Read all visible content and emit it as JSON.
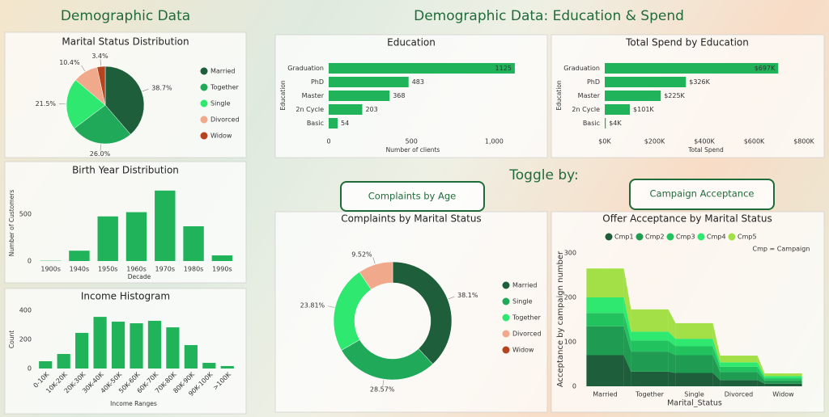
{
  "header": {
    "left_title": "Demographic Data",
    "right_title": "Demographic Data: Education & Spend",
    "toggle_label": "Toggle by:",
    "buttons": [
      "Complaints by Age",
      "Campaign Acceptance"
    ]
  },
  "chart_data": [
    {
      "type": "pie",
      "title": "Marital Status Distribution",
      "categories": [
        "Married",
        "Together",
        "Single",
        "Divorced",
        "Widow"
      ],
      "values": [
        38.7,
        26.0,
        21.5,
        10.4,
        3.4
      ],
      "value_labels": [
        "38.7%",
        "26.0%",
        "21.5%",
        "10.4%",
        "3.4%"
      ],
      "colors": [
        "#1e5e3b",
        "#21a95a",
        "#2ee86f",
        "#f0a98a",
        "#b5441e"
      ]
    },
    {
      "type": "bar",
      "title": "Birth Year Distribution",
      "categories": [
        "1900s",
        "1940s",
        "1950s",
        "1960s",
        "1970s",
        "1980s",
        "1990s"
      ],
      "values": [
        3,
        110,
        475,
        520,
        750,
        370,
        60
      ],
      "color": "#21b35a",
      "ylim": [
        0,
        800
      ],
      "yticks": [
        0,
        500
      ],
      "xlabel": "Decade",
      "ylabel": "Number of Customers"
    },
    {
      "type": "bar",
      "title": "Income Histogram",
      "categories": [
        "0-10K",
        "10K-20K",
        "20K-30K",
        "30K-40K",
        "40K-50K",
        "50K-60K",
        "60K-70K",
        "70K-80K",
        "80K-90K",
        "90K-100K",
        ">100K"
      ],
      "values": [
        50,
        100,
        245,
        355,
        322,
        311,
        328,
        283,
        161,
        39,
        17
      ],
      "color": "#21b35a",
      "ylim": [
        0,
        450
      ],
      "yticks": [
        0,
        200,
        400
      ],
      "xlabel": "Income Ranges",
      "ylabel": "Count"
    },
    {
      "type": "barh",
      "title": "Education",
      "categories": [
        "Graduation",
        "PhD",
        "Master",
        "2n Cycle",
        "Basic"
      ],
      "values": [
        1125,
        483,
        368,
        203,
        54
      ],
      "color": "#21b35a",
      "xlim": [
        0,
        1150
      ],
      "xticks": [
        0,
        500,
        {
          "value": 1000,
          "label": "1,000"
        }
      ],
      "xlabel": "Number of clients",
      "ylabel": "Education"
    },
    {
      "type": "barh",
      "title": "Total Spend by Education",
      "categories": [
        "Graduation",
        "PhD",
        "Master",
        "2n Cycle",
        "Basic"
      ],
      "values": [
        697000,
        326000,
        225000,
        101000,
        4000
      ],
      "value_labels": [
        "$697K",
        "$326K",
        "$225K",
        "$101K",
        "$4K"
      ],
      "color": "#21b35a",
      "xlim": [
        0,
        800000
      ],
      "xticks": [
        {
          "value": 0,
          "label": "$0K"
        },
        {
          "value": 200000,
          "label": "$200K"
        },
        {
          "value": 400000,
          "label": "$400K"
        },
        {
          "value": 600000,
          "label": "$600K"
        },
        {
          "value": 800000,
          "label": "$800K"
        }
      ],
      "xlabel": "Total Spend",
      "ylabel": "Education"
    },
    {
      "type": "donut",
      "title": "Complaints by Marital Status",
      "categories": [
        "Married",
        "Single",
        "Together",
        "Divorced",
        "Widow"
      ],
      "values": [
        38.1,
        28.57,
        23.81,
        9.52,
        0
      ],
      "value_labels": [
        "38.1%",
        "28.57%",
        "23.81%",
        "9.52%",
        null
      ],
      "colors": [
        "#1e5e3b",
        "#21a95a",
        "#2ee86f",
        "#f0a98a",
        "#b5441e"
      ]
    },
    {
      "type": "area",
      "title": "Offer Acceptance by Marital Status",
      "categories": [
        "Married",
        "Together",
        "Single",
        "Divorced",
        "Widow"
      ],
      "series": [
        {
          "name": "Cmp1",
          "color": "#1e5e3b",
          "values": [
            70,
            33,
            30,
            14,
            6
          ]
        },
        {
          "name": "Cmp2",
          "color": "#1f9c52",
          "values": [
            65,
            45,
            40,
            18,
            7
          ]
        },
        {
          "name": "Cmp3",
          "color": "#22c35f",
          "values": [
            30,
            25,
            20,
            12,
            5
          ]
        },
        {
          "name": "Cmp4",
          "color": "#2ee86f",
          "values": [
            35,
            20,
            17,
            10,
            5
          ]
        },
        {
          "name": "Cmp5",
          "color": "#a3e048",
          "values": [
            65,
            50,
            35,
            15,
            6
          ]
        }
      ],
      "ylim": [
        0,
        300
      ],
      "yticks": [
        0,
        100,
        200,
        300
      ],
      "xlabel": "Marital_Status",
      "ylabel": "Acceptance by campaign number",
      "note": "Cmp = Campaign"
    }
  ]
}
